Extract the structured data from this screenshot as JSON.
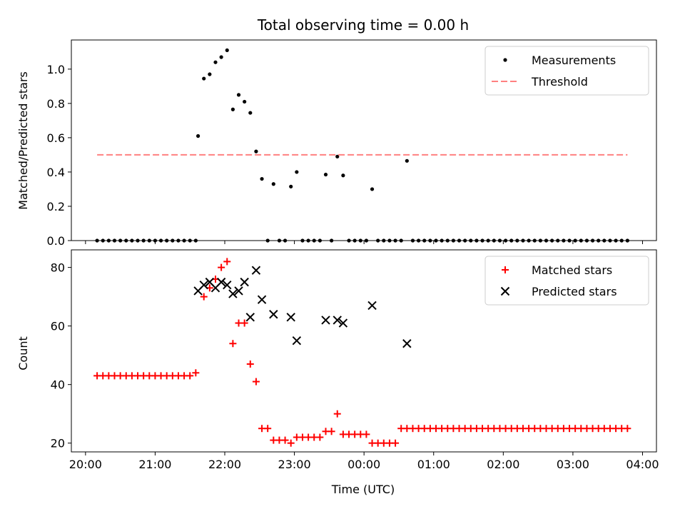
{
  "chart_data": [
    {
      "type": "scatter",
      "title": "Total observing time = 0.00 h",
      "xlabel": "",
      "ylabel": "Matched/Predicted stars",
      "xlim": [
        "20:00",
        "04:00"
      ],
      "ylim": [
        0,
        1.17
      ],
      "xticks": [
        "20:00",
        "21:00",
        "22:00",
        "23:00",
        "00:00",
        "01:00",
        "02:00",
        "03:00",
        "04:00"
      ],
      "yticks": [
        "0.0",
        "0.2",
        "0.4",
        "0.6",
        "0.8",
        "1.0"
      ],
      "legend_position": "top-right",
      "series": [
        {
          "name": "Measurements",
          "color": "#000000",
          "marker": "dot",
          "points": [
            [
              "20:10",
              0
            ],
            [
              "20:15",
              0
            ],
            [
              "20:20",
              0
            ],
            [
              "20:25",
              0
            ],
            [
              "20:30",
              0
            ],
            [
              "20:35",
              0
            ],
            [
              "20:40",
              0
            ],
            [
              "20:45",
              0
            ],
            [
              "20:50",
              0
            ],
            [
              "20:55",
              0
            ],
            [
              "21:00",
              0
            ],
            [
              "21:05",
              0
            ],
            [
              "21:10",
              0
            ],
            [
              "21:15",
              0
            ],
            [
              "21:20",
              0
            ],
            [
              "21:25",
              0
            ],
            [
              "21:30",
              0
            ],
            [
              "21:35",
              0
            ],
            [
              "21:37",
              0.61
            ],
            [
              "21:42",
              0.945
            ],
            [
              "21:47",
              0.97
            ],
            [
              "21:52",
              1.04
            ],
            [
              "21:57",
              1.07
            ],
            [
              "22:02",
              1.11
            ],
            [
              "22:07",
              0.765
            ],
            [
              "22:12",
              0.85
            ],
            [
              "22:17",
              0.81
            ],
            [
              "22:22",
              0.745
            ],
            [
              "22:27",
              0.52
            ],
            [
              "22:32",
              0.36
            ],
            [
              "22:37",
              0
            ],
            [
              "22:42",
              0.33
            ],
            [
              "22:47",
              0
            ],
            [
              "22:52",
              0
            ],
            [
              "22:57",
              0.315
            ],
            [
              "23:02",
              0.4
            ],
            [
              "23:07",
              0
            ],
            [
              "23:12",
              0
            ],
            [
              "23:17",
              0
            ],
            [
              "23:22",
              0
            ],
            [
              "23:27",
              0.385
            ],
            [
              "23:32",
              0
            ],
            [
              "23:37",
              0.49
            ],
            [
              "23:42",
              0.38
            ],
            [
              "23:47",
              0
            ],
            [
              "23:52",
              0
            ],
            [
              "23:57",
              0
            ],
            [
              "00:02",
              0
            ],
            [
              "00:07",
              0.3
            ],
            [
              "00:12",
              0
            ],
            [
              "00:17",
              0
            ],
            [
              "00:22",
              0
            ],
            [
              "00:27",
              0
            ],
            [
              "00:32",
              0
            ],
            [
              "00:37",
              0.465
            ],
            [
              "00:42",
              0
            ],
            [
              "00:47",
              0
            ],
            [
              "00:52",
              0
            ],
            [
              "00:57",
              0
            ],
            [
              "01:02",
              0
            ],
            [
              "01:07",
              0
            ],
            [
              "01:12",
              0
            ],
            [
              "01:17",
              0
            ],
            [
              "01:22",
              0
            ],
            [
              "01:27",
              0
            ],
            [
              "01:32",
              0
            ],
            [
              "01:37",
              0
            ],
            [
              "01:42",
              0
            ],
            [
              "01:47",
              0
            ],
            [
              "01:52",
              0
            ],
            [
              "01:57",
              0
            ],
            [
              "02:02",
              0
            ],
            [
              "02:07",
              0
            ],
            [
              "02:12",
              0
            ],
            [
              "02:17",
              0
            ],
            [
              "02:22",
              0
            ],
            [
              "02:27",
              0
            ],
            [
              "02:32",
              0
            ],
            [
              "02:37",
              0
            ],
            [
              "02:42",
              0
            ],
            [
              "02:47",
              0
            ],
            [
              "02:52",
              0
            ],
            [
              "02:57",
              0
            ],
            [
              "03:02",
              0
            ],
            [
              "03:07",
              0
            ],
            [
              "03:12",
              0
            ],
            [
              "03:17",
              0
            ],
            [
              "03:22",
              0
            ],
            [
              "03:27",
              0
            ],
            [
              "03:32",
              0
            ],
            [
              "03:37",
              0
            ],
            [
              "03:42",
              0
            ],
            [
              "03:47",
              0
            ]
          ]
        },
        {
          "name": "Threshold",
          "color": "#ff8080",
          "style": "dashed",
          "points": [
            [
              "20:10",
              0.5
            ],
            [
              "03:47",
              0.5
            ]
          ]
        }
      ]
    },
    {
      "type": "scatter",
      "title": "",
      "xlabel": "Time (UTC)",
      "ylabel": "Count",
      "xlim": [
        "20:00",
        "04:00"
      ],
      "ylim": [
        17,
        86
      ],
      "xticks": [
        "20:00",
        "21:00",
        "22:00",
        "23:00",
        "00:00",
        "01:00",
        "02:00",
        "03:00",
        "04:00"
      ],
      "yticks": [
        "20",
        "40",
        "60",
        "80"
      ],
      "legend_position": "top-right",
      "series": [
        {
          "name": "Matched stars",
          "color": "#ff0000",
          "marker": "plus",
          "points": [
            [
              "20:10",
              43
            ],
            [
              "20:15",
              43
            ],
            [
              "20:20",
              43
            ],
            [
              "20:25",
              43
            ],
            [
              "20:30",
              43
            ],
            [
              "20:35",
              43
            ],
            [
              "20:40",
              43
            ],
            [
              "20:45",
              43
            ],
            [
              "20:50",
              43
            ],
            [
              "20:55",
              43
            ],
            [
              "21:00",
              43
            ],
            [
              "21:05",
              43
            ],
            [
              "21:10",
              43
            ],
            [
              "21:15",
              43
            ],
            [
              "21:20",
              43
            ],
            [
              "21:25",
              43
            ],
            [
              "21:30",
              43
            ],
            [
              "21:35",
              44
            ],
            [
              "21:42",
              70
            ],
            [
              "21:47",
              73
            ],
            [
              "21:52",
              76
            ],
            [
              "21:57",
              80
            ],
            [
              "22:02",
              82
            ],
            [
              "22:07",
              54
            ],
            [
              "22:12",
              61
            ],
            [
              "22:17",
              61
            ],
            [
              "22:22",
              47
            ],
            [
              "22:27",
              41
            ],
            [
              "22:32",
              25
            ],
            [
              "22:37",
              25
            ],
            [
              "22:42",
              21
            ],
            [
              "22:47",
              21
            ],
            [
              "22:52",
              21
            ],
            [
              "22:57",
              20
            ],
            [
              "23:02",
              22
            ],
            [
              "23:07",
              22
            ],
            [
              "23:12",
              22
            ],
            [
              "23:17",
              22
            ],
            [
              "23:22",
              22
            ],
            [
              "23:27",
              24
            ],
            [
              "23:32",
              24
            ],
            [
              "23:37",
              30
            ],
            [
              "23:42",
              23
            ],
            [
              "23:47",
              23
            ],
            [
              "23:52",
              23
            ],
            [
              "23:57",
              23
            ],
            [
              "00:02",
              23
            ],
            [
              "00:07",
              20
            ],
            [
              "00:12",
              20
            ],
            [
              "00:17",
              20
            ],
            [
              "00:22",
              20
            ],
            [
              "00:27",
              20
            ],
            [
              "00:32",
              25
            ],
            [
              "00:37",
              25
            ],
            [
              "00:42",
              25
            ],
            [
              "00:47",
              25
            ],
            [
              "00:52",
              25
            ],
            [
              "00:57",
              25
            ],
            [
              "01:02",
              25
            ],
            [
              "01:07",
              25
            ],
            [
              "01:12",
              25
            ],
            [
              "01:17",
              25
            ],
            [
              "01:22",
              25
            ],
            [
              "01:27",
              25
            ],
            [
              "01:32",
              25
            ],
            [
              "01:37",
              25
            ],
            [
              "01:42",
              25
            ],
            [
              "01:47",
              25
            ],
            [
              "01:52",
              25
            ],
            [
              "01:57",
              25
            ],
            [
              "02:02",
              25
            ],
            [
              "02:07",
              25
            ],
            [
              "02:12",
              25
            ],
            [
              "02:17",
              25
            ],
            [
              "02:22",
              25
            ],
            [
              "02:27",
              25
            ],
            [
              "02:32",
              25
            ],
            [
              "02:37",
              25
            ],
            [
              "02:42",
              25
            ],
            [
              "02:47",
              25
            ],
            [
              "02:52",
              25
            ],
            [
              "02:57",
              25
            ],
            [
              "03:02",
              25
            ],
            [
              "03:07",
              25
            ],
            [
              "03:12",
              25
            ],
            [
              "03:17",
              25
            ],
            [
              "03:22",
              25
            ],
            [
              "03:27",
              25
            ],
            [
              "03:32",
              25
            ],
            [
              "03:37",
              25
            ],
            [
              "03:42",
              25
            ],
            [
              "03:47",
              25
            ]
          ]
        },
        {
          "name": "Predicted stars",
          "color": "#000000",
          "marker": "x",
          "points": [
            [
              "21:37",
              72
            ],
            [
              "21:42",
              74
            ],
            [
              "21:47",
              75
            ],
            [
              "21:52",
              73
            ],
            [
              "21:57",
              75
            ],
            [
              "22:02",
              74
            ],
            [
              "22:07",
              71
            ],
            [
              "22:12",
              72
            ],
            [
              "22:17",
              75
            ],
            [
              "22:22",
              63
            ],
            [
              "22:27",
              79
            ],
            [
              "22:32",
              69
            ],
            [
              "22:42",
              64
            ],
            [
              "22:57",
              63
            ],
            [
              "23:02",
              55
            ],
            [
              "23:27",
              62
            ],
            [
              "23:37",
              62
            ],
            [
              "23:42",
              61
            ],
            [
              "00:07",
              67
            ],
            [
              "00:37",
              54
            ]
          ]
        }
      ]
    }
  ]
}
